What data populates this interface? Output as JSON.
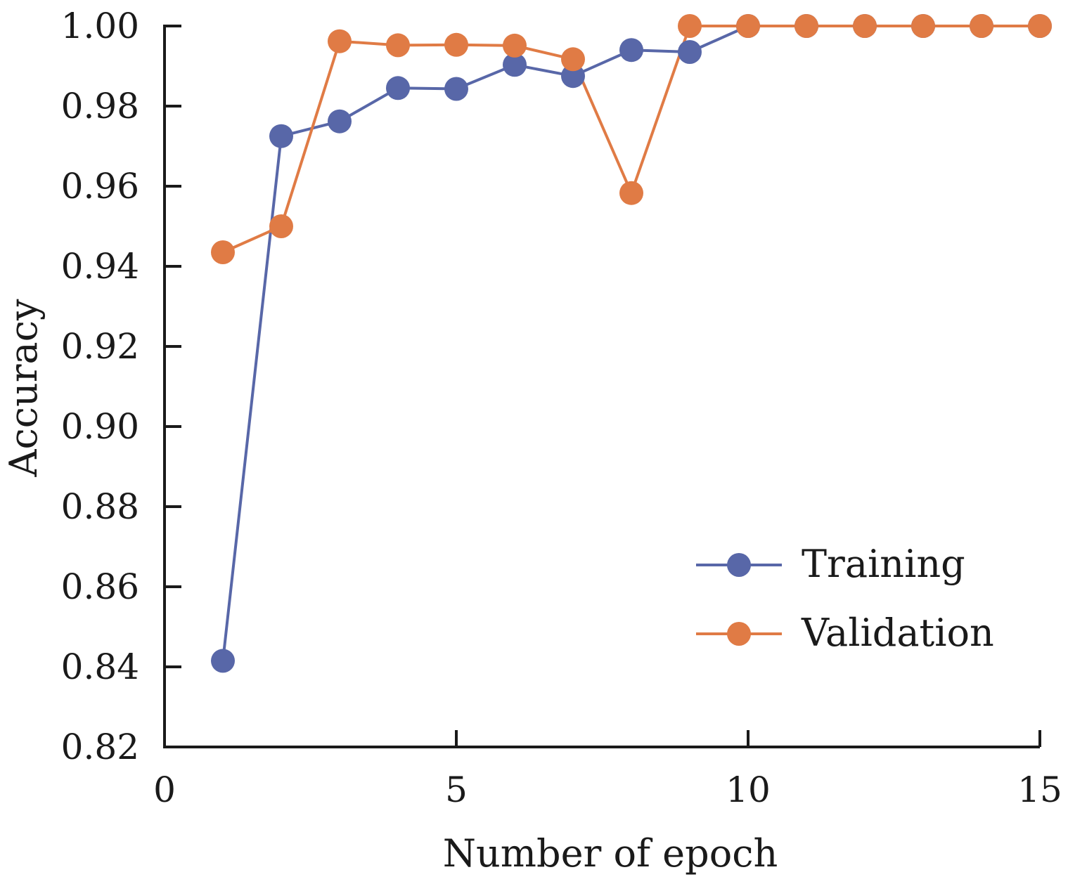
{
  "chart_data": {
    "type": "line",
    "title": "",
    "xlabel": "Number of epoch",
    "ylabel": "Accuracy",
    "xlim": [
      0,
      15
    ],
    "ylim": [
      0.82,
      1.0
    ],
    "xticks": [
      0,
      5,
      10,
      15
    ],
    "yticks": [
      0.82,
      0.84,
      0.86,
      0.88,
      0.9,
      0.92,
      0.94,
      0.96,
      0.98,
      1.0
    ],
    "xtick_labels": [
      "0",
      "5",
      "10",
      "15"
    ],
    "ytick_labels": [
      "0.82",
      "0.84",
      "0.86",
      "0.88",
      "0.90",
      "0.92",
      "0.94",
      "0.96",
      "0.98",
      "1.00"
    ],
    "grid": false,
    "legend_position": "bottom-right",
    "series": [
      {
        "name": "Training",
        "color": "#5867a8",
        "x": [
          1,
          2,
          3,
          4,
          5,
          6,
          7,
          8,
          9,
          10,
          11,
          12,
          13,
          14,
          15
        ],
        "y": [
          0.8415,
          0.9725,
          0.9762,
          0.9845,
          0.9843,
          0.9903,
          0.9875,
          0.994,
          0.9935,
          1.0,
          1.0,
          1.0,
          1.0,
          1.0,
          1.0
        ]
      },
      {
        "name": "Validation",
        "color": "#e07b45",
        "x": [
          1,
          2,
          3,
          4,
          5,
          6,
          7,
          8,
          9,
          10,
          11,
          12,
          13,
          14,
          15
        ],
        "y": [
          0.9435,
          0.95,
          0.9962,
          0.9952,
          0.9953,
          0.9951,
          0.9917,
          0.9583,
          1.0,
          1.0,
          1.0,
          1.0,
          1.0,
          1.0,
          1.0
        ]
      }
    ]
  }
}
